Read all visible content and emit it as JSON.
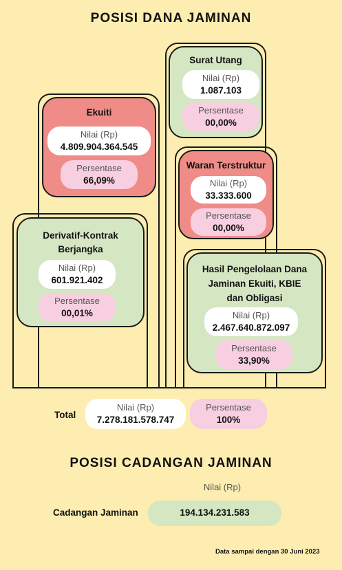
{
  "title": "POSISI DANA JAMINAN",
  "cards": {
    "ekuiti": {
      "title": "Ekuiti",
      "nilai_label": "Nilai (Rp)",
      "nilai": "4.809.904.364.545",
      "persen_label": "Persentase",
      "persen": "66,09%"
    },
    "derivatif": {
      "title_line1": "Derivatif-Kontrak",
      "title_line2": "Berjangka",
      "nilai_label": "Nilai (Rp)",
      "nilai": "601.921.402",
      "persen_label": "Persentase",
      "persen": "00,01%"
    },
    "surat_utang": {
      "title": "Surat Utang",
      "nilai_label": "Nilai (Rp)",
      "nilai": "1.087.103",
      "persen_label": "Persentase",
      "persen": "00,00%"
    },
    "waran": {
      "title": "Waran Terstruktur",
      "nilai_label": "Nilai (Rp)",
      "nilai": "33.333.600",
      "persen_label": "Persentase",
      "persen": "00,00%"
    },
    "hasil": {
      "title_line1": "Hasil Pengelolaan Dana",
      "title_line2": "Jaminan Ekuiti, KBIE",
      "title_line3": "dan Obligasi",
      "nilai_label": "Nilai (Rp)",
      "nilai": "2.467.640.872.097",
      "persen_label": "Persentase",
      "persen": "33,90%"
    }
  },
  "total": {
    "label": "Total",
    "nilai_label": "Nilai (Rp)",
    "nilai": "7.278.181.578.747",
    "persen_label": "Persentase",
    "persen": "100%"
  },
  "cadangan": {
    "title": "POSISI CADANGAN JAMINAN",
    "nilai_label": "Nilai (Rp)",
    "label": "Cadangan Jaminan",
    "nilai": "194.134.231.583"
  },
  "footnote": "Data sampai dengan 30 Juni 2023",
  "colors": {
    "background": "#fdedb0",
    "green": "#d5e6c2",
    "red": "#f08c87",
    "pink": "#f8cfe0",
    "white": "#ffffff"
  }
}
